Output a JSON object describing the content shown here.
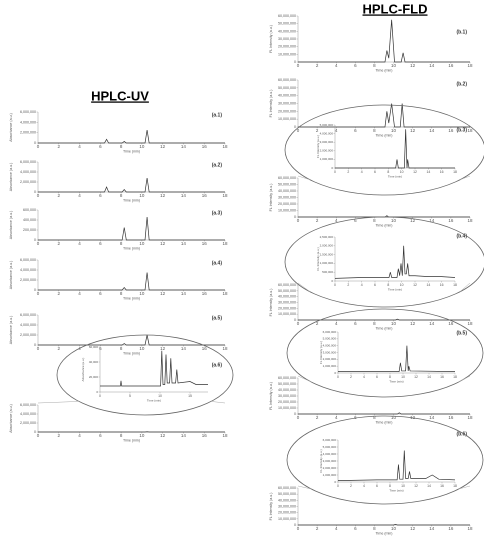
{
  "column_titles": [
    "HPLC-UV",
    "HPLC-FLD"
  ],
  "chart_data": [
    {
      "type": "line",
      "label": "(a.1)",
      "x_label": "Time (min)",
      "y_label": "Absorbance (a.u.)",
      "color": "#333333",
      "xlim": [
        0,
        18
      ],
      "xticks": [
        0,
        2,
        4,
        6,
        8,
        10,
        12,
        14,
        16,
        18
      ],
      "ylim": [
        0,
        6000000
      ],
      "yticks": [
        0,
        {
          "value": 2000000,
          "label": "2,000,000"
        },
        {
          "value": 4000000,
          "label": "4,000,000"
        },
        {
          "value": 6000000,
          "label": "6,000,000"
        }
      ],
      "x": [
        0,
        6.4,
        6.6,
        6.8,
        8.1,
        8.3,
        8.5,
        10.3,
        10.5,
        10.7,
        18
      ],
      "values": [
        0,
        0,
        700000,
        0,
        0,
        300000,
        0,
        0,
        2500000,
        0,
        0
      ]
    },
    {
      "type": "line",
      "label": "(a.2)",
      "x_label": "Time (min)",
      "y_label": "Absorbance (a.u.)",
      "color": "#333333",
      "xlim": [
        0,
        18
      ],
      "xticks": [
        0,
        2,
        4,
        6,
        8,
        10,
        12,
        14,
        16,
        18
      ],
      "ylim": [
        0,
        6000000
      ],
      "yticks": [
        0,
        {
          "value": 2000000,
          "label": "2,000,000"
        },
        {
          "value": 4000000,
          "label": "4,000,000"
        },
        {
          "value": 6000000,
          "label": "6,000,000"
        }
      ],
      "x": [
        0,
        6.4,
        6.6,
        6.8,
        8.1,
        8.3,
        8.5,
        10.3,
        10.5,
        10.7,
        18
      ],
      "values": [
        0,
        0,
        1000000,
        0,
        0,
        500000,
        0,
        0,
        2800000,
        0,
        0
      ]
    },
    {
      "type": "line",
      "label": "(a.3)",
      "x_label": "Time (min)",
      "y_label": "Absorbance (a.u.)",
      "color": "#333333",
      "xlim": [
        0,
        18
      ],
      "xticks": [
        0,
        2,
        4,
        6,
        8,
        10,
        12,
        14,
        16,
        18
      ],
      "ylim": [
        0,
        600000
      ],
      "yticks": [
        0,
        {
          "value": 200000,
          "label": "200,000"
        },
        {
          "value": 400000,
          "label": "400,000"
        },
        {
          "value": 600000,
          "label": "600,000"
        }
      ],
      "x": [
        0,
        8.1,
        8.3,
        8.5,
        10.3,
        10.5,
        10.7,
        18
      ],
      "values": [
        0,
        0,
        250000,
        0,
        0,
        460000,
        0,
        0
      ]
    },
    {
      "type": "line",
      "label": "(a.4)",
      "x_label": "Time (min)",
      "y_label": "Absorbance (a.u.)",
      "color": "#333333",
      "xlim": [
        0,
        18
      ],
      "xticks": [
        0,
        2,
        4,
        6,
        8,
        10,
        12,
        14,
        16,
        18
      ],
      "ylim": [
        0,
        6000000
      ],
      "yticks": [
        0,
        {
          "value": 2000000,
          "label": "2,000,000"
        },
        {
          "value": 4000000,
          "label": "4,000,000"
        },
        {
          "value": 6000000,
          "label": "6,000,000"
        }
      ],
      "x": [
        0,
        8.1,
        8.3,
        8.5,
        10.3,
        10.5,
        10.7,
        18
      ],
      "values": [
        0,
        0,
        500000,
        0,
        0,
        3500000,
        0,
        0
      ]
    },
    {
      "type": "line",
      "label": "(a.5)",
      "x_label": "Time (min)",
      "y_label": "Absorbance (a.u.)",
      "color": "#333333",
      "xlim": [
        0,
        18
      ],
      "xticks": [
        0,
        2,
        4,
        6,
        8,
        10,
        12,
        14,
        16,
        18
      ],
      "ylim": [
        0,
        6000000
      ],
      "yticks": [
        0,
        {
          "value": 2000000,
          "label": "2,000,000"
        },
        {
          "value": 4000000,
          "label": "4,000,000"
        },
        {
          "value": 6000000,
          "label": "6,000,000"
        }
      ],
      "x": [
        0,
        8.1,
        8.3,
        8.5,
        10.3,
        10.5,
        10.7,
        18
      ],
      "values": [
        0,
        0,
        300000,
        0,
        0,
        2000000,
        0,
        0
      ]
    },
    {
      "type": "line",
      "label": "(a.6)",
      "x_label": "Time (min)",
      "y_label": "Absorbance (a.u.)",
      "color": "#333333",
      "xlim": [
        0,
        18
      ],
      "xticks": [
        0,
        2,
        4,
        6,
        8,
        10,
        12,
        14,
        16,
        18
      ],
      "ylim": [
        0,
        6000000
      ],
      "yticks": [
        0,
        {
          "value": 2000000,
          "label": "2,000,000"
        },
        {
          "value": 4000000,
          "label": "4,000,000"
        },
        {
          "value": 6000000,
          "label": "6,000,000"
        }
      ],
      "x": [
        0,
        10.3,
        10.5,
        10.7,
        18
      ],
      "values": [
        0,
        0,
        60000,
        0,
        0
      ]
    },
    {
      "type": "line",
      "x_label": "Time (min)",
      "y_label": "Absorbance (a.u.)",
      "color": "#333333",
      "xlim": [
        0,
        18
      ],
      "xticks": [
        0,
        5,
        10,
        15
      ],
      "ylim": [
        0,
        60000
      ],
      "yticks": [
        0,
        {
          "value": 20000,
          "label": "20,000"
        },
        {
          "value": 40000,
          "label": "40,000"
        },
        {
          "value": 60000,
          "label": "60,000"
        }
      ],
      "x": [
        0,
        3.4,
        3.5,
        3.6,
        10.1,
        10.3,
        10.5,
        10.8,
        11,
        11.2,
        11.6,
        11.8,
        12,
        12.6,
        12.8,
        13,
        15,
        16,
        18
      ],
      "values": [
        8000,
        8000,
        15000,
        8000,
        8000,
        55000,
        10000,
        10000,
        50000,
        12000,
        12000,
        45000,
        12000,
        12000,
        30000,
        12000,
        14000,
        10000,
        10000
      ]
    },
    {
      "type": "line",
      "label": "(b.1)",
      "x_label": "Time (min)",
      "y_label": "FL Intensity (a.u.)",
      "color": "#333333",
      "xlim": [
        0,
        18
      ],
      "xticks": [
        0,
        2,
        4,
        6,
        8,
        10,
        12,
        14,
        16,
        18
      ],
      "ylim": [
        0,
        60000000
      ],
      "yticks": [
        0,
        {
          "value": 10000000,
          "label": "10,000,000"
        },
        {
          "value": 20000000,
          "label": "20,000,000"
        },
        {
          "value": 30000000,
          "label": "30,000,000"
        },
        {
          "value": 40000000,
          "label": "40,000,000"
        },
        {
          "value": 50000000,
          "label": "50,000,000"
        },
        {
          "value": 60000000,
          "label": "60,000,000"
        }
      ],
      "x": [
        0,
        9.1,
        9.3,
        9.5,
        9.8,
        10.1,
        10.8,
        11,
        11.2,
        18
      ],
      "values": [
        0,
        0,
        15000000,
        5000000,
        55000000,
        0,
        0,
        12000000,
        0,
        0
      ]
    },
    {
      "type": "line",
      "label": "(b.2)",
      "x_label": "Time (min)",
      "y_label": "FL Intensity (a.u.)",
      "color": "#333333",
      "xlim": [
        0,
        18
      ],
      "xticks": [
        0,
        2,
        4,
        6,
        8,
        10,
        12,
        14,
        16,
        18
      ],
      "ylim": [
        0,
        60000000
      ],
      "yticks": [
        0,
        {
          "value": 10000000,
          "label": "10,000,000"
        },
        {
          "value": 20000000,
          "label": "20,000,000"
        },
        {
          "value": 30000000,
          "label": "30,000,000"
        },
        {
          "value": 40000000,
          "label": "40,000,000"
        },
        {
          "value": 50000000,
          "label": "50,000,000"
        },
        {
          "value": 60000000,
          "label": "60,000,000"
        }
      ],
      "x": [
        0,
        9.1,
        9.3,
        9.5,
        9.8,
        10.1,
        10.7,
        10.9,
        11.1,
        18
      ],
      "values": [
        0,
        0,
        20000000,
        5000000,
        30000000,
        0,
        0,
        30000000,
        0,
        0
      ]
    },
    {
      "type": "line",
      "label": "(b.3)",
      "x_label": "Time (min)",
      "y_label": "FL Intensity (a.u.)",
      "color": "#333333",
      "xlim": [
        0,
        18
      ],
      "xticks": [
        0,
        2,
        4,
        6,
        8,
        10,
        12,
        14,
        16,
        18
      ],
      "ylim": [
        0,
        60000000
      ],
      "yticks": [
        0,
        {
          "value": 10000000,
          "label": "10,000,000"
        },
        {
          "value": 20000000,
          "label": "20,000,000"
        },
        {
          "value": 30000000,
          "label": "30,000,000"
        },
        {
          "value": 40000000,
          "label": "40,000,000"
        },
        {
          "value": 50000000,
          "label": "50,000,000"
        },
        {
          "value": 60000000,
          "label": "60,000,000"
        }
      ],
      "x": [
        0,
        9.1,
        9.3,
        9.5,
        18
      ],
      "values": [
        0,
        0,
        2000000,
        0,
        0
      ]
    },
    {
      "type": "line",
      "x_label": "Time (min)",
      "y_label": "FL Intensity (a.u.)",
      "color": "#333333",
      "xlim": [
        0,
        18
      ],
      "xticks": [
        0,
        2,
        4,
        6,
        8,
        10,
        12,
        14,
        16,
        18
      ],
      "ylim": [
        0,
        5000000
      ],
      "yticks": [
        0,
        {
          "value": 1000000,
          "label": "1,000,000"
        },
        {
          "value": 2000000,
          "label": "2,000,000"
        },
        {
          "value": 3000000,
          "label": "3,000,000"
        },
        {
          "value": 4000000,
          "label": "4,000,000"
        },
        {
          "value": 5000000,
          "label": "5,000,000"
        }
      ],
      "x": [
        0,
        9.1,
        9.3,
        9.5,
        10.4,
        10.6,
        10.8,
        10.9,
        11.1,
        18
      ],
      "values": [
        0,
        0,
        1000000,
        0,
        0,
        4500000,
        0,
        1000000,
        0,
        0
      ]
    },
    {
      "type": "line",
      "label": "(b.4)",
      "x_label": "Time (min)",
      "y_label": "FL Intensity (a.u.)",
      "color": "#333333",
      "xlim": [
        0,
        18
      ],
      "xticks": [
        0,
        2,
        4,
        6,
        8,
        10,
        12,
        14,
        16,
        18
      ],
      "ylim": [
        0,
        60000000
      ],
      "yticks": [
        0,
        {
          "value": 10000000,
          "label": "10,000,000"
        },
        {
          "value": 20000000,
          "label": "20,000,000"
        },
        {
          "value": 30000000,
          "label": "30,000,000"
        },
        {
          "value": 40000000,
          "label": "40,000,000"
        },
        {
          "value": 50000000,
          "label": "50,000,000"
        },
        {
          "value": 60000000,
          "label": "60,000,000"
        }
      ],
      "x": [
        0,
        10.2,
        10.4,
        10.6,
        18
      ],
      "values": [
        0,
        0,
        1500000,
        0,
        0
      ]
    },
    {
      "type": "line",
      "x_label": "Time (min)",
      "y_label": "FL Intensity (a.u.)",
      "color": "#333333",
      "xlim": [
        0,
        18
      ],
      "xticks": [
        0,
        2,
        4,
        6,
        8,
        10,
        12,
        14,
        16,
        18
      ],
      "ylim": [
        0,
        2500000
      ],
      "yticks": [
        0,
        {
          "value": 500000,
          "label": "500,000"
        },
        {
          "value": 1000000,
          "label": "1,000,000"
        },
        {
          "value": 1500000,
          "label": "1,500,000"
        },
        {
          "value": 2000000,
          "label": "2,000,000"
        },
        {
          "value": 2500000,
          "label": "2,500,000"
        }
      ],
      "x": [
        0,
        4,
        8.1,
        8.3,
        8.5,
        9.3,
        9.5,
        9.7,
        9.9,
        10.1,
        10.3,
        10.5,
        10.7,
        10.9,
        11.1,
        11.3,
        12,
        14,
        16,
        18
      ],
      "values": [
        150000,
        200000,
        200000,
        500000,
        200000,
        200000,
        700000,
        300000,
        1000000,
        300000,
        2000000,
        400000,
        400000,
        1000000,
        300000,
        300000,
        300000,
        250000,
        250000,
        200000
      ]
    },
    {
      "type": "line",
      "label": "(b.5)",
      "x_label": "Time (min)",
      "y_label": "FL Intensity (a.u.)",
      "color": "#333333",
      "xlim": [
        0,
        18
      ],
      "xticks": [
        0,
        2,
        4,
        6,
        8,
        10,
        12,
        14,
        16,
        18
      ],
      "ylim": [
        0,
        60000000
      ],
      "yticks": [
        0,
        {
          "value": 10000000,
          "label": "10,000,000"
        },
        {
          "value": 20000000,
          "label": "20,000,000"
        },
        {
          "value": 30000000,
          "label": "30,000,000"
        },
        {
          "value": 40000000,
          "label": "40,000,000"
        },
        {
          "value": 50000000,
          "label": "50,000,000"
        },
        {
          "value": 60000000,
          "label": "60,000,000"
        }
      ],
      "x": [
        0,
        10.4,
        10.6,
        10.8,
        18
      ],
      "values": [
        0,
        0,
        2000000,
        0,
        0
      ]
    },
    {
      "type": "line",
      "x_label": "Time (min)",
      "y_label": "FL Intensity (a.u.)",
      "color": "#333333",
      "xlim": [
        0,
        18
      ],
      "xticks": [
        0,
        2,
        4,
        6,
        8,
        10,
        12,
        14,
        16,
        18
      ],
      "ylim": [
        0,
        6000000
      ],
      "yticks": [
        0,
        {
          "value": 1000000,
          "label": "1,000,000"
        },
        {
          "value": 2000000,
          "label": "2,000,000"
        },
        {
          "value": 3000000,
          "label": "3,000,000"
        },
        {
          "value": 4000000,
          "label": "4,000,000"
        },
        {
          "value": 5000000,
          "label": "5,000,000"
        },
        {
          "value": 6000000,
          "label": "6,000,000"
        }
      ],
      "x": [
        0,
        9.4,
        9.6,
        9.8,
        10.4,
        10.6,
        10.8,
        10.9,
        11.1,
        18
      ],
      "values": [
        200000,
        200000,
        1500000,
        300000,
        300000,
        4000000,
        300000,
        1000000,
        300000,
        200000
      ]
    },
    {
      "type": "line",
      "label": "(b.6)",
      "x_label": "Time (min)",
      "y_label": "FL Intensity (a.u.)",
      "color": "#333333",
      "xlim": [
        0,
        18
      ],
      "xticks": [
        0,
        2,
        4,
        6,
        8,
        10,
        12,
        14,
        16,
        18
      ],
      "ylim": [
        0,
        60000000
      ],
      "yticks": [
        0,
        {
          "value": 10000000,
          "label": "10,000,000"
        },
        {
          "value": 20000000,
          "label": "20,000,000"
        },
        {
          "value": 30000000,
          "label": "30,000,000"
        },
        {
          "value": 40000000,
          "label": "40,000,000"
        },
        {
          "value": 50000000,
          "label": "50,000,000"
        },
        {
          "value": 60000000,
          "label": "60,000,000"
        }
      ],
      "x": [
        0,
        10,
        10.2,
        10.4,
        18
      ],
      "values": [
        0,
        0,
        1000000,
        0,
        0
      ]
    },
    {
      "type": "line",
      "x_label": "Time (min)",
      "y_label": "FL Intensity (a.u.)",
      "color": "#333333",
      "xlim": [
        0,
        18
      ],
      "xticks": [
        0,
        2,
        4,
        6,
        8,
        10,
        12,
        14,
        16,
        18
      ],
      "ylim": [
        0,
        6000000
      ],
      "yticks": [
        0,
        {
          "value": 1000000,
          "label": "1,000,000"
        },
        {
          "value": 2000000,
          "label": "2,000,000"
        },
        {
          "value": 3000000,
          "label": "3,000,000"
        },
        {
          "value": 4000000,
          "label": "4,000,000"
        },
        {
          "value": 5000000,
          "label": "5,000,000"
        },
        {
          "value": 6000000,
          "label": "6,000,000"
        }
      ],
      "x": [
        0,
        6,
        9.1,
        9.3,
        9.5,
        10,
        10.2,
        10.4,
        10.8,
        11,
        11.2,
        13.5,
        14.5,
        15.5,
        18
      ],
      "values": [
        200000,
        300000,
        300000,
        2500000,
        400000,
        400000,
        4500000,
        500000,
        500000,
        1500000,
        500000,
        500000,
        1000000,
        400000,
        300000
      ]
    }
  ]
}
